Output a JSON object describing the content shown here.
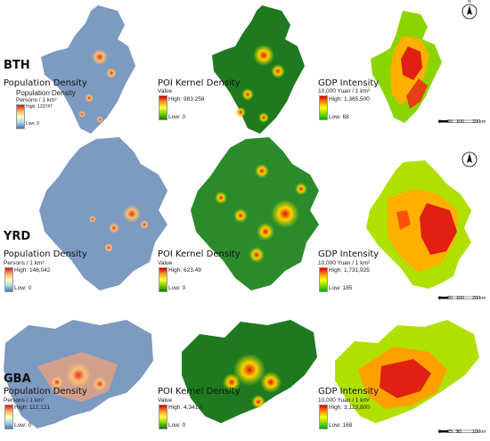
{
  "rows": [
    {
      "region": "BTH",
      "pop": {
        "title": "Population Density",
        "subtitle": "Population Density",
        "unit": "Persons / 1 km²",
        "high": "High: 123747",
        "low": "Low: 0"
      },
      "poi": {
        "title": "POI Kernel Density",
        "unit": "Value",
        "high": "High: 983.258",
        "low": "Low: 0"
      },
      "gdp": {
        "title": "GDP Intensity",
        "unit": "10,000 Yuan / 1 km²",
        "high": "High: 1,365,500",
        "low": "Low: 68"
      },
      "scale": {
        "t0": "0",
        "t1": "50",
        "t2": "100",
        "t3": "200",
        "unit": "km"
      }
    },
    {
      "region": "YRD",
      "pop": {
        "title": "Population Density",
        "unit": "Persons / 1 km²",
        "high": "High: 146,042",
        "low": "Low: 0"
      },
      "poi": {
        "title": "POI Kernel Density",
        "unit": "Value",
        "high": "High: 623.49",
        "low": "Low: 0"
      },
      "gdp": {
        "title": "GDP Intensity",
        "unit": "10,000 Yuan / 1 km²",
        "high": "High: 1,731,925",
        "low": "Low: 185"
      },
      "scale": {
        "t0": "0",
        "t1": "50",
        "t2": "100",
        "t3": "200",
        "unit": "km"
      }
    },
    {
      "region": "GBA",
      "pop": {
        "title": "Population Density",
        "unit": "Persons / 1 km²",
        "high": "High: 112,121",
        "low": "Low: 0"
      },
      "poi": {
        "title": "POI Kernel Density",
        "unit": "Value",
        "high": "High: 4,341.0",
        "low": "Low: 0"
      },
      "gdp": {
        "title": "GDP Intensity",
        "unit": "10,000 Yuan / 1 km²",
        "high": "High: 3,123,800",
        "low": "Low: 168"
      },
      "scale": {
        "t0": "0",
        "t1": "25",
        "t2": "50",
        "t3": "100",
        "unit": "km"
      }
    }
  ],
  "north_arrow": "N",
  "colors": {
    "pop_base": "#7d9ac0",
    "poi_base": "#1f7a1f",
    "gdp_mid": "#ffb000"
  }
}
